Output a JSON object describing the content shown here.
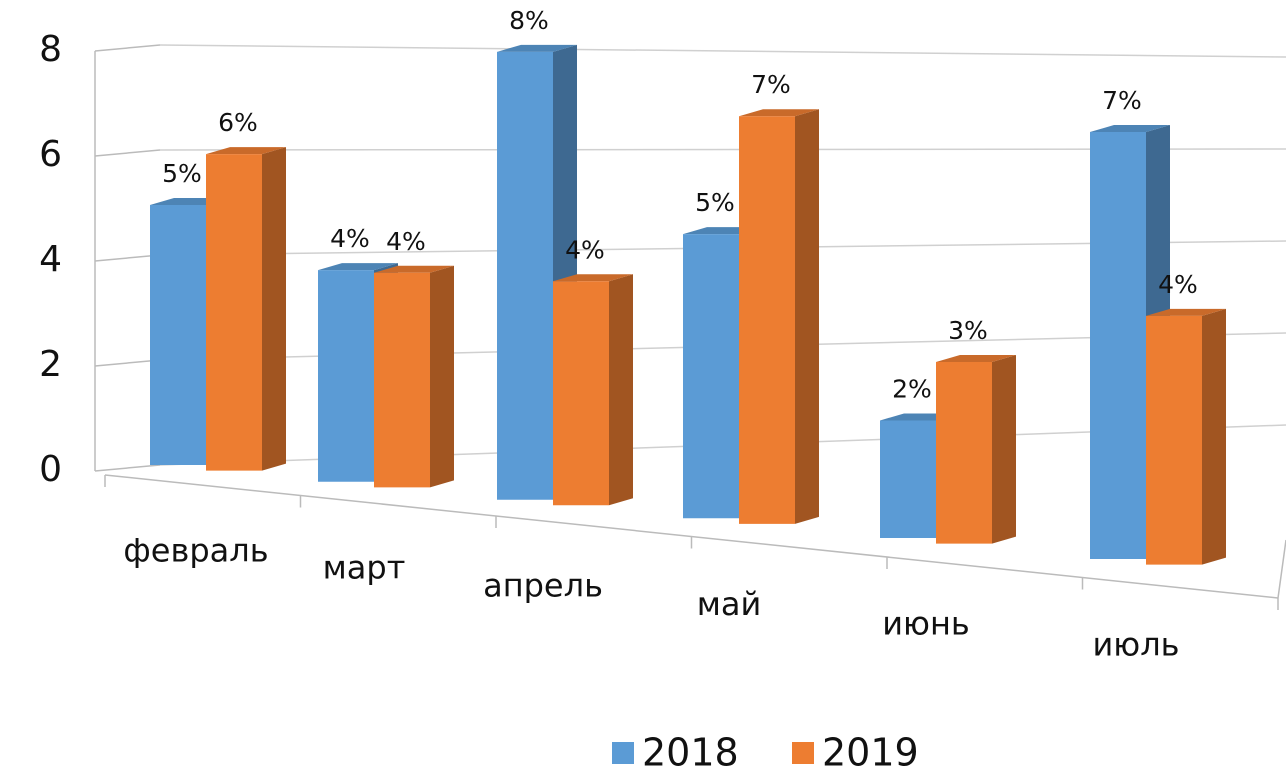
{
  "chart_data": {
    "type": "bar3d",
    "categories": [
      "февраль",
      "март",
      "апрель",
      "май",
      "июнь",
      "июль"
    ],
    "series": [
      {
        "name": "2018",
        "color": "#5b9bd5",
        "values": [
          5.0,
          3.9,
          7.9,
          4.8,
          1.9,
          6.6
        ],
        "value_labels": [
          "5%",
          "4%",
          "8%",
          "5%",
          "2%",
          "7%"
        ]
      },
      {
        "name": "2019",
        "color": "#ed7d31",
        "values": [
          6.0,
          3.9,
          3.9,
          6.8,
          2.9,
          3.8
        ],
        "value_labels": [
          "6%",
          "4%",
          "4%",
          "7%",
          "3%",
          "4%"
        ]
      }
    ],
    "ylim": [
      0,
      8
    ],
    "yticks": [
      0,
      2,
      4,
      6,
      8
    ],
    "grid": true,
    "legend": "bottom"
  }
}
